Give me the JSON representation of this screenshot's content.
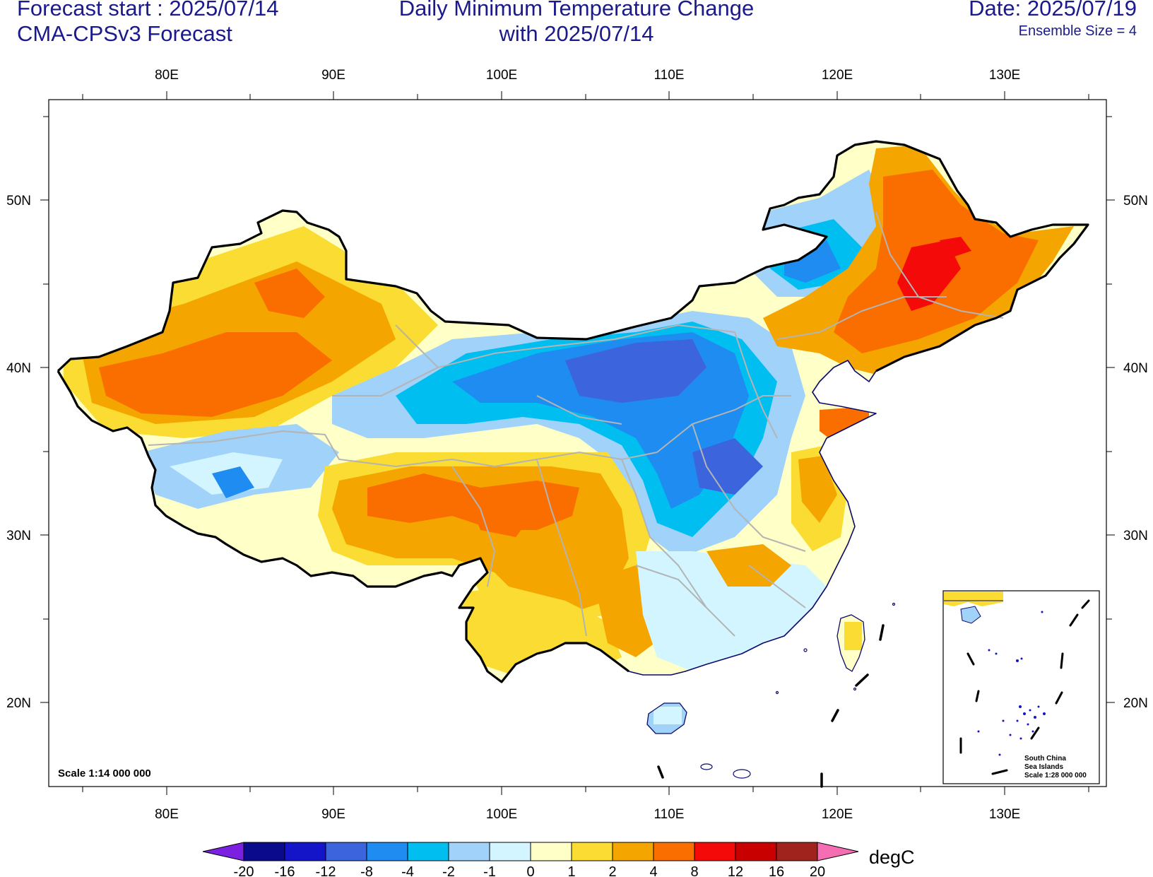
{
  "header": {
    "forecast_start": "Forecast start : 2025/07/14",
    "model": "CMA-CPSv3 Forecast",
    "title_line1": "Daily Minimum Temperature Change",
    "title_line2": "with 2025/07/14",
    "date": "Date: 2025/07/19",
    "ensemble": "Ensemble Size = 4"
  },
  "map": {
    "lon_labels": [
      "80E",
      "90E",
      "100E",
      "110E",
      "120E",
      "130E"
    ],
    "lat_labels": [
      "50N",
      "40N",
      "30N",
      "20N"
    ],
    "scale_text": "Scale 1:14 000 000",
    "inset": {
      "line1": "South China",
      "line2": "Sea Islands",
      "line3": "Scale 1:28 000 000"
    }
  },
  "colorbar": {
    "unit": "degC",
    "labels": [
      "-20",
      "-16",
      "-12",
      "-8",
      "-4",
      "-2",
      "-1",
      "0",
      "1",
      "2",
      "4",
      "8",
      "12",
      "16",
      "20"
    ],
    "colors": [
      "#7b1fe0",
      "#0a0a8c",
      "#1414c8",
      "#3c64dc",
      "#1e8cf0",
      "#00bef0",
      "#a0d2fa",
      "#d2f5ff",
      "#ffffc8",
      "#fadc32",
      "#f5a500",
      "#fa6e00",
      "#f50a0a",
      "#c80000",
      "#a0231e",
      "#f56eb4"
    ]
  }
}
